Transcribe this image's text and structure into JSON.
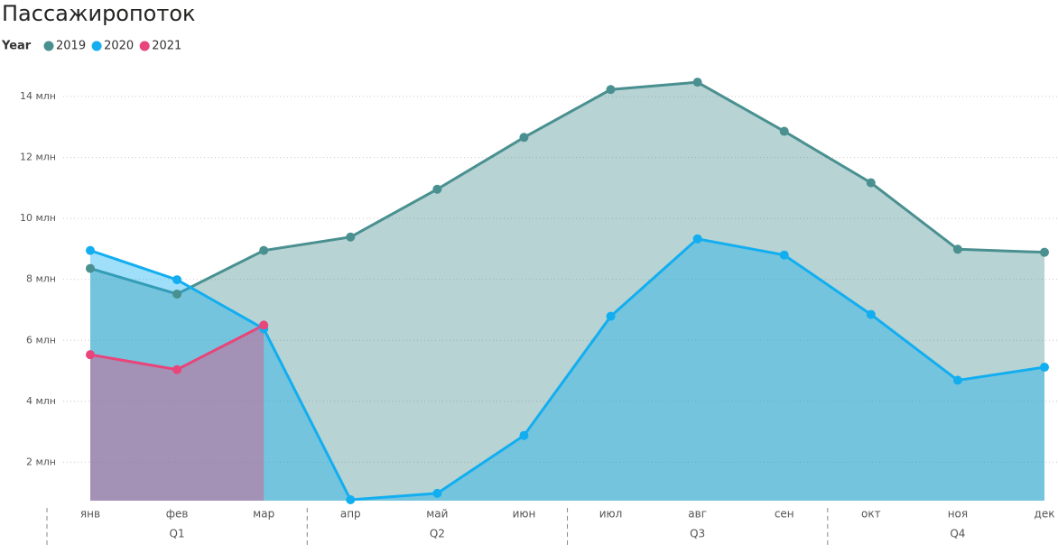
{
  "chart_data": {
    "type": "area",
    "title": "Пассажиропоток",
    "legend_title": "Year",
    "categories": [
      "янв",
      "фев",
      "мар",
      "апр",
      "май",
      "июн",
      "июл",
      "авг",
      "сен",
      "окт",
      "ноя",
      "дек"
    ],
    "groups": [
      "Q1",
      "Q2",
      "Q3",
      "Q4"
    ],
    "series": [
      {
        "name": "2019",
        "color": "#4a9090",
        "values": [
          8.36,
          7.52,
          8.95,
          9.39,
          10.96,
          12.66,
          14.23,
          14.47,
          12.86,
          11.17,
          8.99,
          8.89
        ]
      },
      {
        "name": "2020",
        "color": "#12aef0",
        "values": [
          8.95,
          7.99,
          6.38,
          0.77,
          0.98,
          2.88,
          6.79,
          9.33,
          8.8,
          6.85,
          4.69,
          5.12
        ]
      },
      {
        "name": "2021",
        "color": "#e8457a",
        "values": [
          5.53,
          5.04,
          6.5,
          null,
          null,
          null,
          null,
          null,
          null,
          null,
          null,
          null
        ]
      }
    ],
    "ylim": [
      0.74,
      14.8
    ],
    "yticks": [
      {
        "value": 2,
        "label": "2 млн"
      },
      {
        "value": 4,
        "label": "4 млн"
      },
      {
        "value": 6,
        "label": "6 млн"
      },
      {
        "value": 8,
        "label": "8 млн"
      },
      {
        "value": 10,
        "label": "10 млн"
      },
      {
        "value": 12,
        "label": "12 млн"
      },
      {
        "value": 14,
        "label": "14 млн"
      }
    ],
    "grid": true
  }
}
